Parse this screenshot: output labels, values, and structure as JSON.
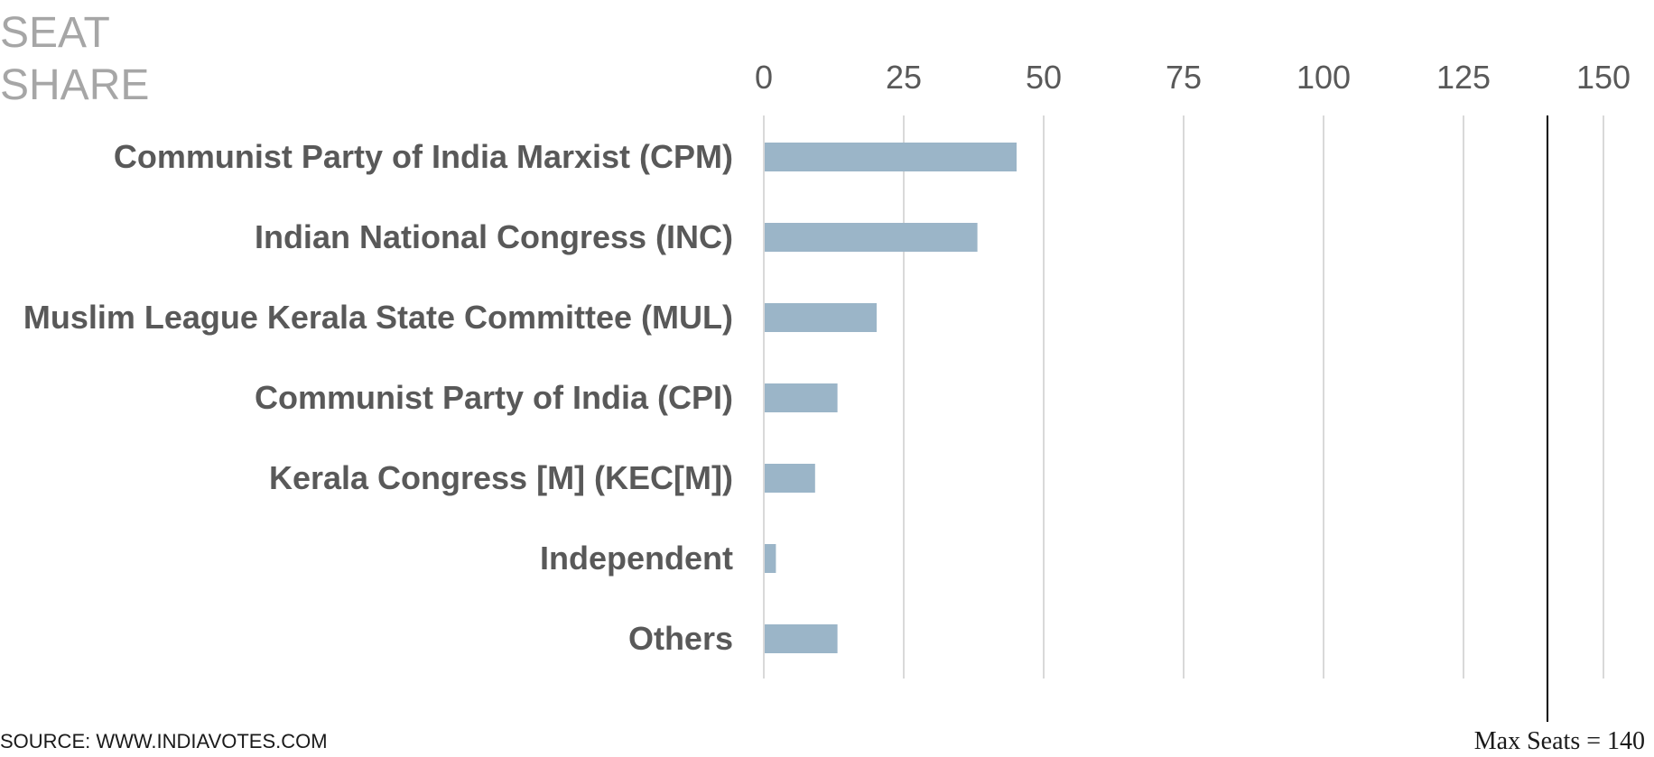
{
  "chart_data": {
    "type": "bar",
    "orientation": "horizontal",
    "title_lines": [
      "SEAT",
      "SHARE"
    ],
    "categories": [
      "Communist Party of India Marxist (CPM)",
      "Indian National Congress (INC)",
      "Muslim League Kerala State Committee (MUL)",
      "Communist Party of India (CPI)",
      "Kerala Congress [M] (KEC[M])",
      "Independent",
      "Others"
    ],
    "values": [
      45,
      38,
      20,
      13,
      9,
      2,
      13
    ],
    "xlim": [
      0,
      150
    ],
    "xticks": [
      0,
      25,
      50,
      75,
      100,
      125,
      150
    ],
    "xtick_labels": [
      "0",
      "25",
      "50",
      "75",
      "100",
      "125",
      "150"
    ],
    "axis_position": "top",
    "grid": true,
    "reference_line": {
      "value": 140,
      "label": "Max Seats = 140"
    },
    "source": "SOURCE: WWW.INDIAVOTES.COM",
    "colors": {
      "bar": "#9bb5c8",
      "grid": "#d9d9d9",
      "reference": "#000000"
    }
  }
}
